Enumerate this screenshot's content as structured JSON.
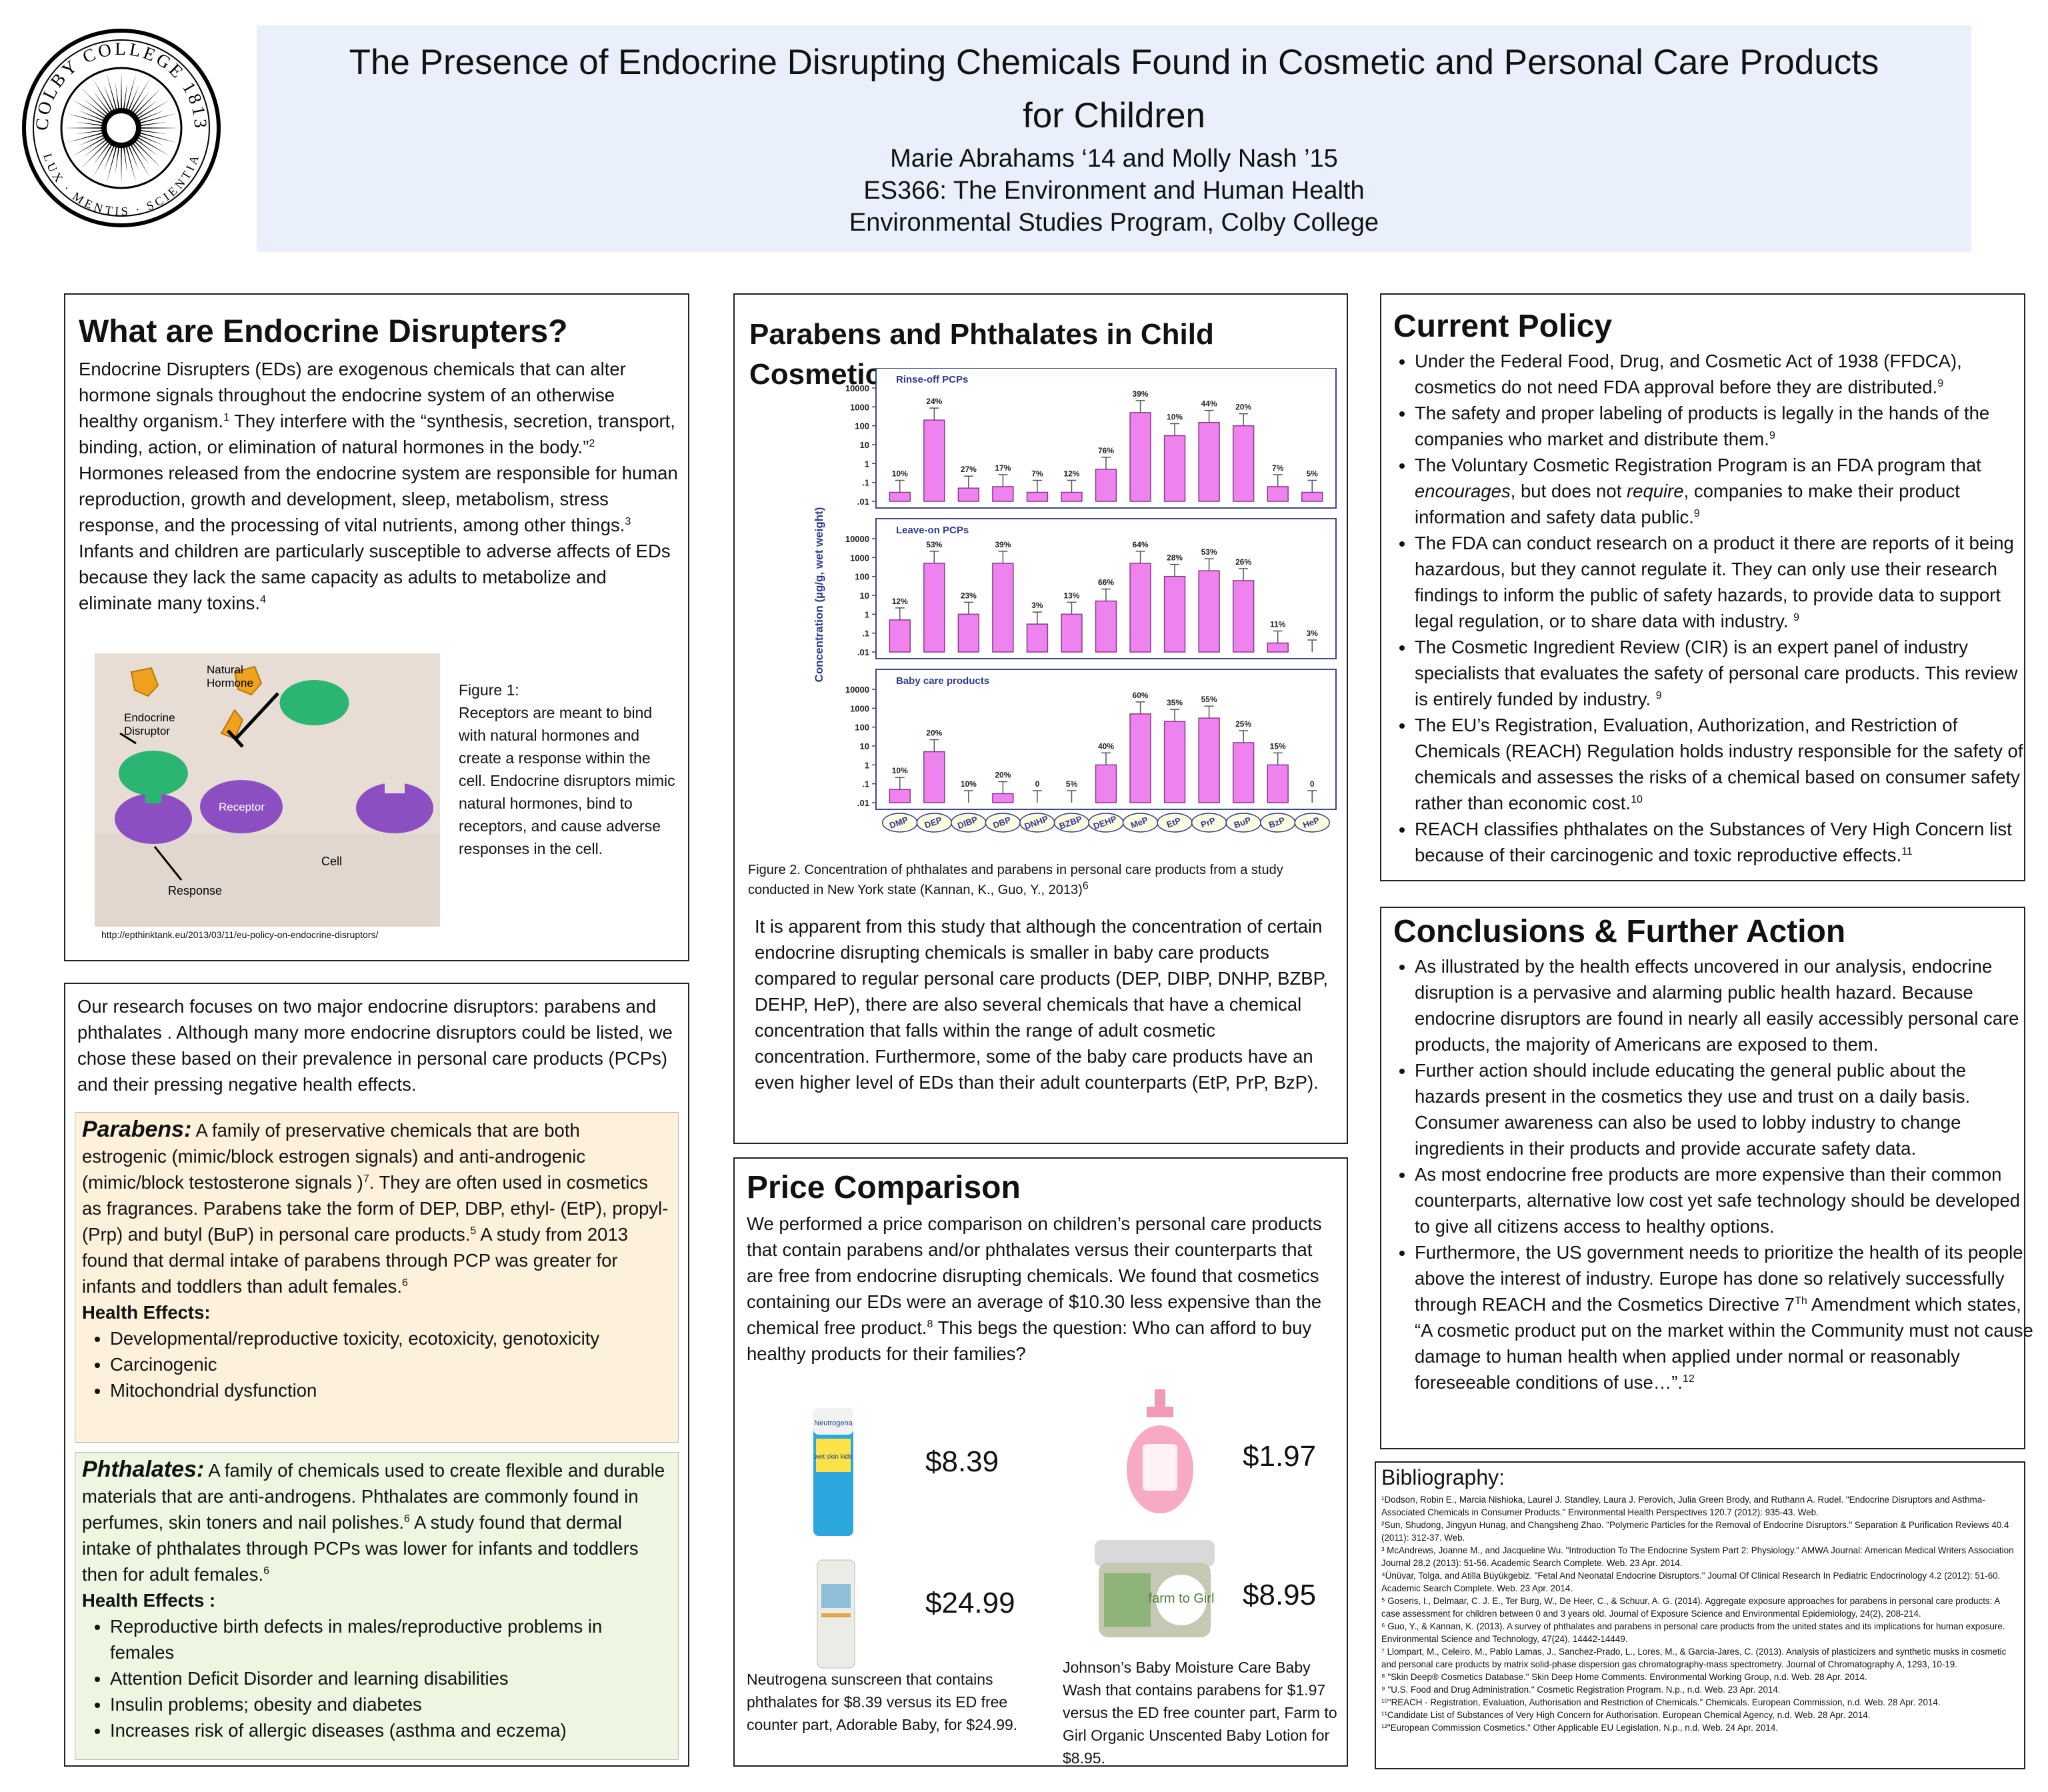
{
  "header": {
    "title_line1": "The Presence of Endocrine Disrupting Chemicals Found in Cosmetic and Personal Care Products",
    "title_line2": "for Children",
    "authors": "Marie Abrahams ‘14 and Molly Nash ’15",
    "course": "ES366: The Environment and Human Health",
    "program": "Environmental Studies Program, Colby College",
    "seal_top": "COLBY COLLEGE 1813",
    "seal_bottom": "LUX · MENTIS · SCIENTIA"
  },
  "endocrine": {
    "heading": "What are Endocrine Disrupters?",
    "p1": "Endocrine Disrupters (EDs) are exogenous chemicals that can alter hormone signals throughout the endocrine system of an otherwise healthy organism.",
    "r1": "1",
    "p2": " They interfere with the “synthesis, secretion, transport, binding, action, or elimination of natural hormones in the body.”",
    "r2": "2",
    "p3": " Hormones released from the endocrine system are responsible for human reproduction, growth and development, sleep, metabolism, stress response, and the processing of vital nutrients, among other things.",
    "r3": "3",
    "p4": " Infants and children are particularly susceptible to adverse affects of EDs because they lack the same capacity as adults to metabolize and eliminate many toxins.",
    "r4": "4",
    "fig_labels": {
      "disruptor": "Endocrine Disruptor",
      "natural": "Natural Hormone",
      "receptor": "Receptor",
      "response": "Response",
      "cell": "Cell"
    },
    "fig_caption_title": "Figure 1:",
    "fig_caption": "Receptors are meant to bind with natural hormones and create a response within the cell. Endocrine disruptors mimic natural hormones, bind to receptors, and cause adverse responses in the cell.",
    "fig_url": "http://epthinktank.eu/2013/03/11/eu-policy-on-endocrine-disruptors/"
  },
  "research": {
    "intro": "Our research focuses on two major endocrine disruptors: parabens and phthalates . Although many more endocrine disruptors could be listed, we chose these  based on their prevalence in personal care products (PCPs) and their pressing negative health effects.",
    "parabens_title": "Parabens:",
    "parabens_a": " A family of preservative chemicals that are both estrogenic (mimic/block estrogen signals) and anti-androgenic (mimic/block testosterone signals )",
    "parabens_r1": "7",
    "parabens_b": ". They are often used in cosmetics as fragrances. Parabens take the form of DEP, DBP, ethyl- (EtP), propyl- (Prp) and butyl (BuP) in personal care products.",
    "parabens_r2": "5",
    "parabens_c": " A study from 2013 found that dermal intake of parabens through PCP was greater for infants and toddlers than adult females.",
    "parabens_r3": "6",
    "parabens_health": "Health Effects:",
    "parabens_effects": [
      "Developmental/reproductive toxicity, ecotoxicity, genotoxicity",
      "Carcinogenic",
      "Mitochondrial dysfunction"
    ],
    "phthalates_title": "Phthalates:",
    "phthalates_a": " A family of chemicals used to create flexible and durable materials that are anti-androgens. Phthalates are commonly found in perfumes, skin toners and nail polishes.",
    "phthalates_r1": "6",
    "phthalates_b": " A study found that dermal intake of phthalates through PCPs was lower for infants and toddlers then for adult females.",
    "phthalates_r2": "6",
    "phthalates_health": "Health Effects :",
    "phthalates_effects": [
      "Reproductive birth defects in males/reproductive problems in females",
      "Attention Deficit Disorder and learning disabilities",
      "Insulin problems; obesity and diabetes",
      "Increases risk of allergic diseases (asthma and eczema)"
    ]
  },
  "chart_panel": {
    "heading": "Parabens and Phthalates in Child Cosmetics",
    "caption": "Figure 2. Concentration of phthalates and parabens in personal care products from a study conducted in New York state (Kannan, K., Guo, Y., 2013)",
    "caption_ref": "6",
    "text": "It is apparent from this study that although the concentration of certain endocrine disrupting chemicals is smaller in baby care products compared to regular personal care products (DEP, DIBP, DNHP, BZBP, DEHP, HeP), there are also several chemicals that have a chemical concentration that falls within the range of adult cosmetic concentration. Furthermore, some of the baby care products have an even higher level of EDs than their adult counterparts (EtP, PrP, BzP)."
  },
  "chart_data": {
    "type": "bar",
    "ylabel": "Concentration (µg/g, wet weight)",
    "scale": "log",
    "ylim": [
      0.01,
      10000
    ],
    "yticks": [
      "10000",
      "1000",
      "100",
      "10",
      "1",
      ".1",
      ".01"
    ],
    "categories": [
      "DMP",
      "DEP",
      "DIBP",
      "DBP",
      "DNHP",
      "BZBP",
      "DEHP",
      "MeP",
      "EtP",
      "PrP",
      "BuP",
      "BzP",
      "HeP"
    ],
    "series": [
      {
        "name": "Rinse-off PCPs",
        "values": [
          0.03,
          200,
          0.05,
          0.06,
          0.03,
          0.03,
          0.5,
          500,
          30,
          150,
          100,
          0.06,
          0.03
        ],
        "labels": [
          "10%",
          "24%",
          "27%",
          "17%",
          "7%",
          "12%",
          "76%",
          "39%",
          "10%",
          "44%",
          "20%",
          "7%",
          "5%"
        ]
      },
      {
        "name": "Leave-on PCPs",
        "values": [
          0.5,
          500,
          1,
          500,
          0.3,
          1,
          5,
          500,
          100,
          200,
          60,
          0.03,
          0.01
        ],
        "labels": [
          "12%",
          "53%",
          "23%",
          "39%",
          "3%",
          "13%",
          "66%",
          "64%",
          "28%",
          "53%",
          "26%",
          "11%",
          "3%"
        ]
      },
      {
        "name": "Baby care products",
        "values": [
          0.05,
          5,
          0.01,
          0.03,
          0.01,
          0.01,
          1,
          500,
          200,
          300,
          15,
          1,
          0.01
        ],
        "labels": [
          "10%",
          "20%",
          "10%",
          "20%",
          "0",
          "5%",
          "40%",
          "60%",
          "35%",
          "55%",
          "25%",
          "15%",
          "0"
        ]
      }
    ]
  },
  "price": {
    "heading": "Price Comparison",
    "text_a": "We performed a price comparison on children’s personal care products that contain parabens and/or phthalates versus their counterparts that are free from endocrine disrupting chemicals. We found that cosmetics containing our EDs were an average of $10.30 less expensive than the chemical free product.",
    "text_ref": "8",
    "text_b": " This begs the question: Who can afford to buy healthy products for their families?",
    "p1": "$8.39",
    "p2": "$24.99",
    "p3": "$1.97",
    "p4": "$8.95",
    "neutrogena_brand": "Neutrogena",
    "neutrogena_label": "wet skin kids",
    "farm_label": "farm to Girl",
    "caption_left": "Neutrogena sunscreen that contains phthalates for $8.39 versus its ED free counter part, Adorable Baby, for $24.99.",
    "caption_right": "Johnson’s Baby Moisture Care Baby Wash that contains parabens  for $1.97 versus the ED free counter part, Farm to Girl Organic Unscented Baby Lotion for $8.95."
  },
  "policy": {
    "heading": "Current Policy",
    "b1": "Under the Federal Food, Drug, and Cosmetic Act of 1938 (FFDCA), cosmetics do not need FDA approval before they are distributed.",
    "b1r": "9",
    "b2": "The safety and proper labeling of products is legally in the hands of the companies who market and distribute them.",
    "b2r": "9",
    "b3a": "The Voluntary Cosmetic Registration Program is an FDA program that ",
    "b3i1": "encourages",
    "b3b": ",  but does not ",
    "b3i2": "require",
    "b3c": ",  companies to make their product information and safety data public.",
    "b3r": "9",
    "b4": "The FDA can conduct research on a product it there are reports of it being hazardous, but they cannot regulate it. They can only use their research findings to inform the public of safety hazards, to provide data to support legal regulation, or to share data with industry. ",
    "b4r": "9",
    "b5": "The Cosmetic Ingredient Review (CIR) is an expert panel of industry specialists that evaluates the safety of personal care products. This review is entirely funded by industry. ",
    "b5r": "9",
    "b6": "The EU’s Registration, Evaluation, Authorization, and Restriction of Chemicals (REACH) Regulation holds industry responsible for the safety of chemicals and assesses the risks of a chemical based on consumer safety rather than economic cost.",
    "b6r": "10",
    "b7": "REACH classifies phthalates on the Substances of Very High Concern list because of their carcinogenic and toxic reproductive effects.",
    "b7r": "11"
  },
  "conclusions": {
    "heading": "Conclusions & Further Action",
    "b1": "As illustrated by the health effects uncovered in our analysis, endocrine disruption is a pervasive and alarming public health hazard. Because endocrine disruptors are found in nearly all easily accessibly personal care products, the majority of Americans are exposed to them.",
    "b2": "Further action should include educating the general public about the hazards present in the cosmetics they use and trust on a daily basis. Consumer awareness can also be used to lobby industry to change ingredients in their products and provide accurate safety data.",
    "b3": "As most endocrine free products are more expensive than their common counterparts, alternative low cost yet safe technology should be developed to give all citizens access to healthy options.",
    "b4a": "Furthermore, the US government needs to prioritize the health of its people above the interest of industry. Europe has done so relatively successfully through REACH and the Cosmetics Directive 7",
    "b4sup": "Th",
    "b4b": " Amendment which states, “A cosmetic product put on the market within the Community must not cause damage to human health when applied under normal or reasonably foreseeable conditions of use…”.",
    "b4r": "12"
  },
  "bibliography": {
    "heading": "Bibliography:",
    "entries": [
      "¹Dodson, Robin E., Marcia Nishioka, Laurel J. Standley, Laura J. Perovich, Julia Green Brody, and Ruthann A. Rudel. \"Endocrine Disruptors and Asthma-Associated Chemicals in Consumer Products.\" Environmental Health Perspectives 120.7 (2012): 935-43. Web.",
      "²Sun, Shudong, Jingyun Hunag, and Changsheng Zhao. \"Polymeric Particles for the Removal of Endocrine Disruptors.\" Separation & Purification Reviews 40.4 (2011): 312-37. Web.",
      "³ McAndrews, Joanne M., and Jacqueline Wu. \"Introduction To The Endocrine System Part 2: Physiology.\" AMWA Journal: American Medical Writers Association Journal 28.2 (2013): 51-56. Academic Search Complete. Web. 23 Apr. 2014.",
      "⁴Ünüvar, Tolga, and Atilla Büyükgebiz. \"Fetal And Neonatal Endocrine Disruptors.\" Journal Of Clinical Research In Pediatric Endocrinology 4.2 (2012): 51-60. Academic Search Complete. Web. 23 Apr. 2014.",
      "⁵ Gosens, I., Delmaar, C. J. E., Ter Burg, W., De Heer, C., & Schuur, A. G. (2014). Aggregate exposure approaches for parabens in personal care products: A case assessment for children between 0 and 3 years old. Journal of Exposure Science and Environmental Epidemiology, 24(2), 208-214.",
      "⁶ Guo, Y., & Kannan, K. (2013). A survey of phthalates and parabens in personal care products from the united states and its implications for human exposure. Environmental Science and Technology, 47(24), 14442-14449.",
      "⁷ Llompart, M., Celeiro, M., Pablo Lamas, J., Sanchez-Prado, L., Lores, M., & Garcia-Jares, C. (2013). Analysis of plasticizers and synthetic musks in cosmetic and personal care products by matrix solid-phase dispersion gas chromatography-mass spectrometry. Journal of Chromatography A, 1293, 10-19.",
      "⁸ \"Skin Deep® Cosmetics Database.\" Skin Deep Home Comments. Environmental Working Group, n.d. Web. 28 Apr. 2014.",
      "⁹ \"U.S. Food and Drug Administration.\" Cosmetic Registration Program. N.p., n.d. Web. 23 Apr. 2014.",
      "¹⁰\"REACH - Registration, Evaluation, Authorisation and Restriction of Chemicals.\" Chemicals. European Commission, n.d. Web. 28 Apr. 2014.",
      "¹¹Candidate List of Substances of Very High Concern for Authorisation. European Chemical Agency, n.d. Web. 28 Apr. 2014.",
      "¹²\"European Commission Cosmetics.\" Other Applicable EU Legislation. N.p., n.d. Web. 24 Apr. 2014."
    ]
  }
}
